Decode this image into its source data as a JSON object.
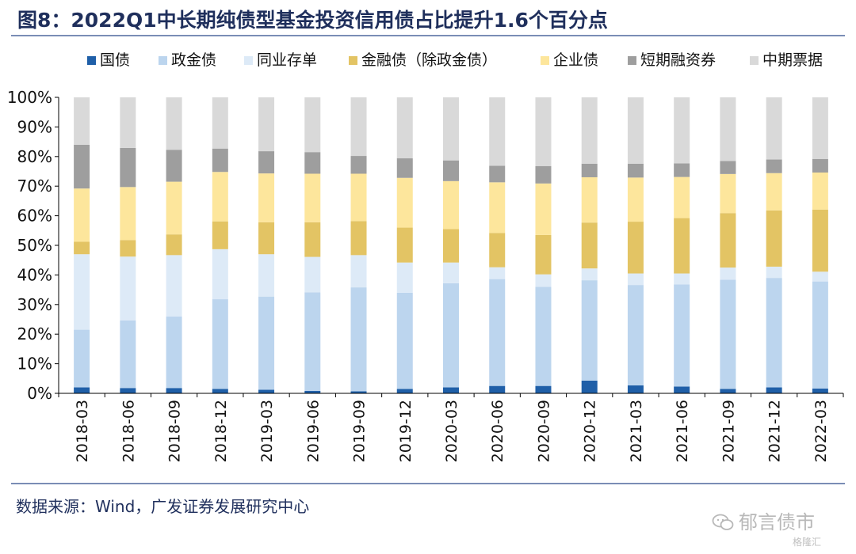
{
  "header": {
    "title": "图8：2022Q1中长期纯债型基金投资信用债占比提升1.6个百分点"
  },
  "footer": {
    "source": "数据来源：Wind，广发证券发展研究中心",
    "watermark": "郁言债市",
    "watermark_sub": "格隆汇"
  },
  "chart_data": {
    "type": "bar",
    "stacked": true,
    "categories": [
      "2018-03",
      "2018-06",
      "2018-09",
      "2018-12",
      "2019-03",
      "2019-06",
      "2019-09",
      "2019-12",
      "2020-03",
      "2020-06",
      "2020-09",
      "2020-12",
      "2021-03",
      "2021-06",
      "2021-09",
      "2021-12",
      "2022-03"
    ],
    "ylim": [
      0,
      100
    ],
    "yticks": [
      "0%",
      "10%",
      "20%",
      "30%",
      "40%",
      "50%",
      "60%",
      "70%",
      "80%",
      "90%",
      "100%"
    ],
    "grid": false,
    "legend_position": "top",
    "series": [
      {
        "name": "国债",
        "color": "#1f5fa8",
        "values": [
          2.0,
          1.8,
          1.8,
          1.5,
          1.2,
          0.8,
          0.7,
          1.5,
          2.0,
          2.5,
          2.5,
          4.3,
          2.7,
          2.3,
          1.5,
          2.0,
          1.6
        ]
      },
      {
        "name": "政金债",
        "color": "#bcd5ee",
        "values": [
          19.5,
          22.8,
          24.2,
          30.3,
          31.5,
          33.3,
          35.1,
          32.5,
          35.2,
          36.1,
          33.5,
          33.9,
          33.9,
          34.5,
          36.9,
          37.0,
          36.2
        ]
      },
      {
        "name": "同业存单",
        "color": "#ddeaf7",
        "values": [
          25.5,
          21.6,
          20.7,
          16.9,
          14.3,
          12.0,
          10.9,
          10.2,
          7.0,
          4.0,
          4.2,
          4.0,
          3.9,
          3.7,
          4.1,
          3.8,
          3.3
        ]
      },
      {
        "name": "金融债（除政金债）",
        "color": "#e3c464",
        "values": [
          4.2,
          5.6,
          7.0,
          9.4,
          10.8,
          11.7,
          11.5,
          11.8,
          11.3,
          11.6,
          13.3,
          15.5,
          17.5,
          18.7,
          18.4,
          19.0,
          21.0
        ]
      },
      {
        "name": "企业债",
        "color": "#fde69c",
        "values": [
          18.0,
          17.9,
          17.8,
          16.7,
          16.5,
          16.4,
          16.0,
          16.8,
          16.2,
          17.1,
          17.4,
          15.3,
          14.9,
          13.9,
          13.2,
          12.6,
          12.5
        ]
      },
      {
        "name": "短期融资券",
        "color": "#9e9e9e",
        "values": [
          14.8,
          13.2,
          10.8,
          7.9,
          7.5,
          7.3,
          6.0,
          6.6,
          7.0,
          5.6,
          5.9,
          4.6,
          4.7,
          4.6,
          4.4,
          4.6,
          4.6
        ]
      },
      {
        "name": "中期票据",
        "color": "#d9d9d9",
        "values": [
          16.0,
          17.1,
          17.7,
          17.3,
          18.2,
          18.5,
          19.8,
          20.6,
          21.3,
          23.1,
          23.2,
          22.4,
          22.4,
          22.3,
          21.5,
          21.0,
          20.8
        ]
      }
    ]
  }
}
